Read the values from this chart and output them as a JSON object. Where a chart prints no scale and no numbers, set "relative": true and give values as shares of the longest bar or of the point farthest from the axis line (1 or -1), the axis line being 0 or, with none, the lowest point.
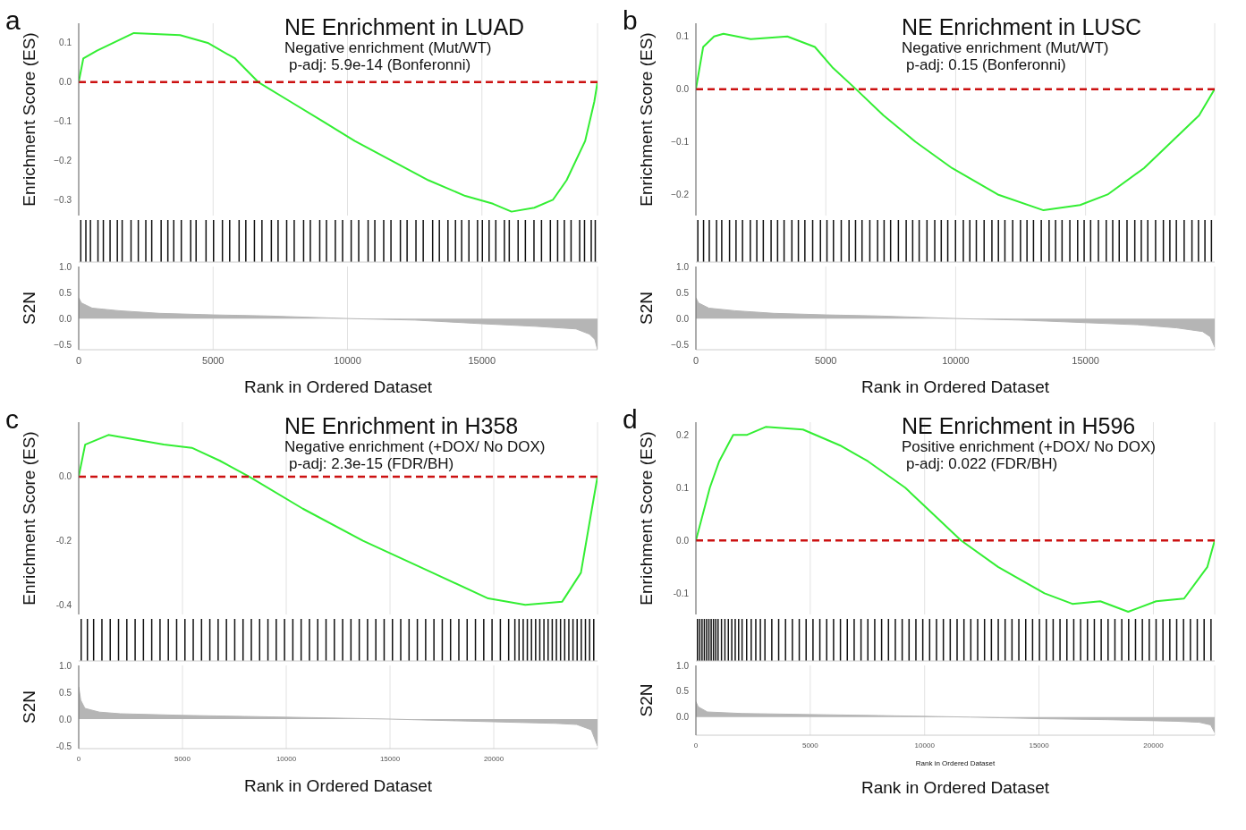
{
  "chart_data": [
    {
      "type": "line",
      "title": "NE Enrichment in LUAD",
      "subtitle": "Negative enrichment (Mut/WT)",
      "annotations": [
        "a",
        "p-adj: 5.9e-14 (Bonferonni)"
      ],
      "ylabel": "Enrichment Score (ES)",
      "x": [
        0,
        170,
        680,
        2050,
        3770,
        4800,
        5820,
        6680,
        7880,
        9080,
        10270,
        11640,
        13010,
        14380,
        15410,
        16100,
        16950,
        17640,
        18150,
        18840,
        19180,
        19300
      ],
      "values": [
        0,
        0.06,
        0.08,
        0.125,
        0.12,
        0.1,
        0.06,
        0,
        -0.05,
        -0.1,
        -0.15,
        -0.2,
        -0.25,
        -0.29,
        -0.31,
        -0.33,
        -0.32,
        -0.3,
        -0.25,
        -0.15,
        -0.05,
        0
      ],
      "color": "#33ee33",
      "xlim": [
        0,
        19300
      ],
      "xticks": [
        0,
        5000,
        10000,
        15000
      ],
      "ylim": [
        -0.34,
        0.15
      ],
      "yticks": [
        {
          "value": 0.1,
          "label": "0.1"
        },
        {
          "value": 0,
          "label": "0.0"
        },
        {
          "value": -0.1,
          "label": "−0.1"
        },
        {
          "value": -0.2,
          "label": "−0.2"
        },
        {
          "value": -0.3,
          "label": "−0.3"
        }
      ],
      "grid": "x",
      "tick_labels": "y",
      "ref_lines": [
        {
          "axis": "y",
          "value": 0,
          "color": "#cc1111",
          "line_style": "dashed"
        }
      ]
    },
    {
      "type": "bar",
      "relative": true,
      "x": [
        60,
        250,
        420,
        700,
        900,
        1150,
        1420,
        1600,
        1930,
        2200,
        2480,
        2700,
        3050,
        3300,
        3520,
        3800,
        4150,
        4350,
        4720,
        5000,
        5330,
        5600,
        5950,
        6200,
        6520,
        6800,
        7150,
        7400,
        7720,
        8000,
        8350,
        8600,
        8950,
        9200,
        9530,
        9800,
        10120,
        10400,
        10750,
        11000,
        11330,
        11600,
        11950,
        12200,
        12530,
        12800,
        13150,
        13400,
        13720,
        14000,
        14230,
        14500,
        14820,
        15000,
        15250,
        15500,
        15820,
        16000,
        16330,
        16600,
        16920,
        17200,
        17530,
        17800,
        18050,
        18300,
        18620,
        18800,
        19050,
        19200
      ],
      "values": [
        1,
        1,
        1,
        1,
        1,
        1,
        1,
        1,
        1,
        1,
        1,
        1,
        1,
        1,
        1,
        1,
        1,
        1,
        1,
        1,
        1,
        1,
        1,
        1,
        1,
        1,
        1,
        1,
        1,
        1,
        1,
        1,
        1,
        1,
        1,
        1,
        1,
        1,
        1,
        1,
        1,
        1,
        1,
        1,
        1,
        1,
        1,
        1,
        1,
        1,
        1,
        1,
        1,
        1,
        1,
        1,
        1,
        1,
        1,
        1,
        1,
        1,
        1,
        1,
        1,
        1,
        1,
        1,
        1,
        1
      ],
      "color": "#111111",
      "xlim": [
        0,
        19300
      ],
      "tick_labels": false
    },
    {
      "type": "area",
      "ylabel": "S2N",
      "xlabel": "Rank in Ordered Dataset",
      "x": [
        0,
        100,
        500,
        1500,
        3000,
        5000,
        7000,
        10000,
        12500,
        15000,
        17000,
        18500,
        19000,
        19200,
        19300
      ],
      "values": [
        0.4,
        0.3,
        0.2,
        0.15,
        0.1,
        0.07,
        0.05,
        0,
        -0.03,
        -0.1,
        -0.15,
        -0.2,
        -0.3,
        -0.4,
        -0.6
      ],
      "color": "#b5b5b5",
      "xlim": [
        0,
        19300
      ],
      "xticks": [
        0,
        5000,
        10000,
        15000
      ],
      "ylim": [
        -0.6,
        1.0
      ],
      "yticks": [
        {
          "value": 1,
          "label": "1.0"
        },
        {
          "value": 0.5,
          "label": "0.5"
        },
        {
          "value": 0,
          "label": "0.0"
        },
        {
          "value": -0.5,
          "label": "−0.5"
        }
      ],
      "grid": "x"
    },
    {
      "type": "line",
      "title": "NE Enrichment in LUSC",
      "subtitle": "Negative enrichment (Mut/WT)",
      "annotations": [
        "b",
        "p-adj: 0.15 (Bonferonni)"
      ],
      "ylabel": "Enrichment Score (ES)",
      "x": [
        0,
        280,
        700,
        1060,
        2110,
        3520,
        4580,
        5280,
        6160,
        7220,
        8450,
        9860,
        11620,
        13380,
        14790,
        15850,
        17250,
        18310,
        19370,
        19970
      ],
      "values": [
        0,
        0.08,
        0.1,
        0.105,
        0.095,
        0.1,
        0.08,
        0.04,
        0,
        -0.05,
        -0.1,
        -0.15,
        -0.2,
        -0.23,
        -0.22,
        -0.2,
        -0.15,
        -0.1,
        -0.05,
        0
      ],
      "color": "#33ee33",
      "xlim": [
        0,
        19970
      ],
      "xticks": [
        0,
        5000,
        10000,
        15000
      ],
      "ylim": [
        -0.24,
        0.125
      ],
      "yticks": [
        {
          "value": 0.1,
          "label": "0.1"
        },
        {
          "value": 0,
          "label": "0.0"
        },
        {
          "value": -0.1,
          "label": "−0.1"
        },
        {
          "value": -0.2,
          "label": "−0.2"
        }
      ],
      "grid": "x",
      "tick_labels": "y",
      "ref_lines": [
        {
          "axis": "y",
          "value": 0,
          "color": "#cc1111",
          "line_style": "dashed"
        }
      ]
    },
    {
      "type": "bar",
      "relative": true,
      "x": [
        80,
        300,
        520,
        800,
        1000,
        1300,
        1550,
        1800,
        2100,
        2350,
        2600,
        2900,
        3150,
        3400,
        3700,
        3950,
        4200,
        4500,
        4800,
        5050,
        5300,
        5600,
        5900,
        6150,
        6400,
        6700,
        7000,
        7250,
        7500,
        7800,
        8100,
        8350,
        8600,
        8900,
        9200,
        9450,
        9700,
        10000,
        10300,
        10550,
        10800,
        11100,
        11400,
        11650,
        11900,
        12200,
        12500,
        12750,
        13000,
        13300,
        13600,
        13850,
        14100,
        14400,
        14700,
        14950,
        15200,
        15500,
        15800,
        16050,
        16300,
        16600,
        16900,
        17150,
        17400,
        17700,
        18000,
        18250,
        18500,
        18800,
        19100,
        19350,
        19600,
        19850
      ],
      "values": [
        1,
        1,
        1,
        1,
        1,
        1,
        1,
        1,
        1,
        1,
        1,
        1,
        1,
        1,
        1,
        1,
        1,
        1,
        1,
        1,
        1,
        1,
        1,
        1,
        1,
        1,
        1,
        1,
        1,
        1,
        1,
        1,
        1,
        1,
        1,
        1,
        1,
        1,
        1,
        1,
        1,
        1,
        1,
        1,
        1,
        1,
        1,
        1,
        1,
        1,
        1,
        1,
        1,
        1,
        1,
        1,
        1,
        1,
        1,
        1,
        1,
        1,
        1,
        1,
        1,
        1,
        1,
        1,
        1,
        1,
        1,
        1,
        1,
        1
      ],
      "color": "#111111",
      "xlim": [
        0,
        19970
      ],
      "tick_labels": false
    },
    {
      "type": "area",
      "ylabel": "S2N",
      "xlabel": "Rank in Ordered Dataset",
      "x": [
        0,
        100,
        500,
        1500,
        3000,
        5000,
        7000,
        10000,
        12500,
        15000,
        17000,
        18500,
        19500,
        19800,
        19970
      ],
      "values": [
        0.4,
        0.3,
        0.2,
        0.15,
        0.1,
        0.07,
        0.05,
        0,
        -0.03,
        -0.08,
        -0.12,
        -0.18,
        -0.25,
        -0.35,
        -0.55
      ],
      "color": "#b5b5b5",
      "xlim": [
        0,
        19970
      ],
      "xticks": [
        0,
        5000,
        10000,
        15000
      ],
      "ylim": [
        -0.6,
        1.0
      ],
      "yticks": [
        {
          "value": 1,
          "label": "1.0"
        },
        {
          "value": 0.5,
          "label": "0.5"
        },
        {
          "value": 0,
          "label": "0.0"
        },
        {
          "value": -0.5,
          "label": "−0.5"
        }
      ],
      "grid": "x"
    },
    {
      "type": "line",
      "title": "NE Enrichment in H358",
      "subtitle": "Negative enrichment (+DOX/ No DOX)",
      "annotations": [
        "c",
        "p-adj: 2.3e-15 (FDR/BH)"
      ],
      "ylabel": "Enrichment Score (ES)",
      "x": [
        0,
        310,
        1430,
        4100,
        5450,
        6790,
        8210,
        10800,
        13700,
        17050,
        19730,
        21520,
        23300,
        24200,
        24730,
        25000
      ],
      "values": [
        0,
        0.1,
        0.13,
        0.1,
        0.09,
        0.05,
        0,
        -0.1,
        -0.2,
        -0.3,
        -0.38,
        -0.4,
        -0.39,
        -0.3,
        -0.1,
        0
      ],
      "color": "#33ee33",
      "xlim": [
        0,
        25000
      ],
      "xticks": [
        0,
        5000,
        10000,
        15000,
        20000
      ],
      "ylim": [
        -0.43,
        0.17
      ],
      "yticks": [
        {
          "value": 0,
          "label": "0.0"
        },
        {
          "value": -0.2,
          "label": "-0.2"
        },
        {
          "value": -0.4,
          "label": "-0.4"
        }
      ],
      "grid": "x",
      "tick_labels": "y",
      "ref_lines": [
        {
          "axis": "y",
          "value": 0,
          "color": "#cc1111",
          "line_style": "dashed"
        }
      ]
    },
    {
      "type": "bar",
      "relative": true,
      "x": [
        100,
        400,
        700,
        1100,
        1500,
        1900,
        2300,
        2700,
        3100,
        3500,
        3900,
        4300,
        4700,
        5100,
        5500,
        5900,
        6300,
        6700,
        7100,
        7500,
        7900,
        8300,
        8700,
        9100,
        9500,
        9900,
        10300,
        10700,
        11100,
        11500,
        11900,
        12300,
        12700,
        13100,
        13500,
        13900,
        14300,
        14700,
        15100,
        15500,
        15900,
        16300,
        16700,
        17100,
        17500,
        17900,
        18300,
        18700,
        19100,
        19500,
        19900,
        20300,
        20700,
        21000,
        21200,
        21400,
        21600,
        21800,
        22000,
        22200,
        22400,
        22600,
        22800,
        23000,
        23200,
        23400,
        23600,
        23800,
        24000,
        24200,
        24400,
        24600,
        24800
      ],
      "values": [
        1,
        1,
        1,
        1,
        1,
        1,
        1,
        1,
        1,
        1,
        1,
        1,
        1,
        1,
        1,
        1,
        1,
        1,
        1,
        1,
        1,
        1,
        1,
        1,
        1,
        1,
        1,
        1,
        1,
        1,
        1,
        1,
        1,
        1,
        1,
        1,
        1,
        1,
        1,
        1,
        1,
        1,
        1,
        1,
        1,
        1,
        1,
        1,
        1,
        1,
        1,
        1,
        1,
        1,
        1,
        1,
        1,
        1,
        1,
        1,
        1,
        1,
        1,
        1,
        1,
        1,
        1,
        1,
        1,
        1,
        1,
        1,
        1
      ],
      "color": "#111111",
      "xlim": [
        0,
        25000
      ],
      "tick_labels": false
    },
    {
      "type": "area",
      "ylabel": "S2N",
      "xlabel": "Rank in Ordered Dataset",
      "x": [
        0,
        100,
        300,
        1000,
        2000,
        5000,
        8000,
        15000,
        20000,
        23000,
        24000,
        24700,
        25000
      ],
      "values": [
        0.6,
        0.35,
        0.2,
        0.13,
        0.1,
        0.07,
        0.05,
        0,
        -0.05,
        -0.08,
        -0.1,
        -0.2,
        -0.5
      ],
      "color": "#b5b5b5",
      "xlim": [
        0,
        25000
      ],
      "xticks": [
        0,
        5000,
        10000,
        15000,
        20000
      ],
      "ylim": [
        -0.55,
        1.0
      ],
      "yticks": [
        {
          "value": 1,
          "label": "1.0"
        },
        {
          "value": 0.5,
          "label": "0.5"
        },
        {
          "value": 0,
          "label": "0.0"
        },
        {
          "value": -0.5,
          "label": "-0.5"
        }
      ],
      "grid": "x"
    },
    {
      "type": "line",
      "title": "NE Enrichment in H596",
      "subtitle": "Positive enrichment (+DOX/ No DOX)",
      "annotations": [
        "d",
        "p-adj: 0.022 (FDR/BH)"
      ],
      "ylabel": "Enrichment Score (ES)",
      "x": [
        0,
        610,
        1020,
        1630,
        2240,
        3050,
        4680,
        6300,
        7520,
        9150,
        10370,
        11590,
        13210,
        15240,
        16460,
        17680,
        18900,
        20120,
        21340,
        22360,
        22680
      ],
      "values": [
        0,
        0.1,
        0.15,
        0.2,
        0.2,
        0.215,
        0.21,
        0.18,
        0.15,
        0.1,
        0.05,
        0,
        -0.05,
        -0.1,
        -0.12,
        -0.115,
        -0.135,
        -0.115,
        -0.11,
        -0.05,
        0
      ],
      "color": "#33ee33",
      "xlim": [
        0,
        22680
      ],
      "xticks": [
        0,
        5000,
        10000,
        15000,
        20000
      ],
      "ylim": [
        -0.14,
        0.224
      ],
      "yticks": [
        {
          "value": 0.2,
          "label": "0.2"
        },
        {
          "value": 0.1,
          "label": "0.1"
        },
        {
          "value": 0,
          "label": "0.0"
        },
        {
          "value": -0.1,
          "label": "-0.1"
        }
      ],
      "grid": "x",
      "tick_labels": "y",
      "ref_lines": [
        {
          "axis": "y",
          "value": 0,
          "color": "#cc1111",
          "line_style": "dashed"
        }
      ]
    },
    {
      "type": "bar",
      "relative": true,
      "x": [
        50,
        150,
        250,
        350,
        450,
        550,
        650,
        750,
        850,
        950,
        1100,
        1250,
        1400,
        1550,
        1700,
        1850,
        2000,
        2200,
        2400,
        2600,
        2800,
        3000,
        3300,
        3600,
        3900,
        4200,
        4500,
        4800,
        5100,
        5400,
        5700,
        6000,
        6300,
        6600,
        6900,
        7200,
        7500,
        7800,
        8100,
        8400,
        8700,
        9000,
        9300,
        9600,
        9900,
        10200,
        10500,
        10800,
        11100,
        11400,
        11700,
        12000,
        12300,
        12600,
        12900,
        13200,
        13500,
        13800,
        14100,
        14400,
        14700,
        15000,
        15300,
        15600,
        15900,
        16200,
        16500,
        16800,
        17100,
        17400,
        17700,
        18000,
        18300,
        18600,
        18900,
        19200,
        19500,
        19800,
        20100,
        20400,
        20700,
        21000,
        21300,
        21600,
        21900,
        22200,
        22500
      ],
      "values": [
        1,
        1,
        1,
        1,
        1,
        1,
        1,
        1,
        1,
        1,
        1,
        1,
        1,
        1,
        1,
        1,
        1,
        1,
        1,
        1,
        1,
        1,
        1,
        1,
        1,
        1,
        1,
        1,
        1,
        1,
        1,
        1,
        1,
        1,
        1,
        1,
        1,
        1,
        1,
        1,
        1,
        1,
        1,
        1,
        1,
        1,
        1,
        1,
        1,
        1,
        1,
        1,
        1,
        1,
        1,
        1,
        1,
        1,
        1,
        1,
        1,
        1,
        1,
        1,
        1,
        1,
        1,
        1,
        1,
        1,
        1,
        1,
        1,
        1,
        1,
        1,
        1,
        1,
        1,
        1,
        1,
        1,
        1,
        1,
        1,
        1,
        1
      ],
      "color": "#111111",
      "xlim": [
        0,
        22680
      ],
      "tick_labels": false
    },
    {
      "type": "area",
      "ylabel": "S2N",
      "xlabel": "Rank in Ordered Dataset",
      "annotations": [
        "Rank in Ordered Dataset"
      ],
      "x": [
        0,
        100,
        500,
        2000,
        5000,
        8000,
        12000,
        15000,
        18000,
        21000,
        22000,
        22500,
        22680
      ],
      "values": [
        0.3,
        0.2,
        0.1,
        0.07,
        0.05,
        0.03,
        0,
        -0.03,
        -0.05,
        -0.08,
        -0.1,
        -0.15,
        -0.3
      ],
      "color": "#b5b5b5",
      "xlim": [
        0,
        22680
      ],
      "xticks": [
        0,
        5000,
        10000,
        15000,
        20000
      ],
      "ylim": [
        -0.35,
        1.0
      ],
      "yticks": [
        {
          "value": 1,
          "label": "1.0"
        },
        {
          "value": 0.5,
          "label": "0.5"
        },
        {
          "value": 0,
          "label": "0.0"
        }
      ],
      "grid": "x"
    }
  ]
}
